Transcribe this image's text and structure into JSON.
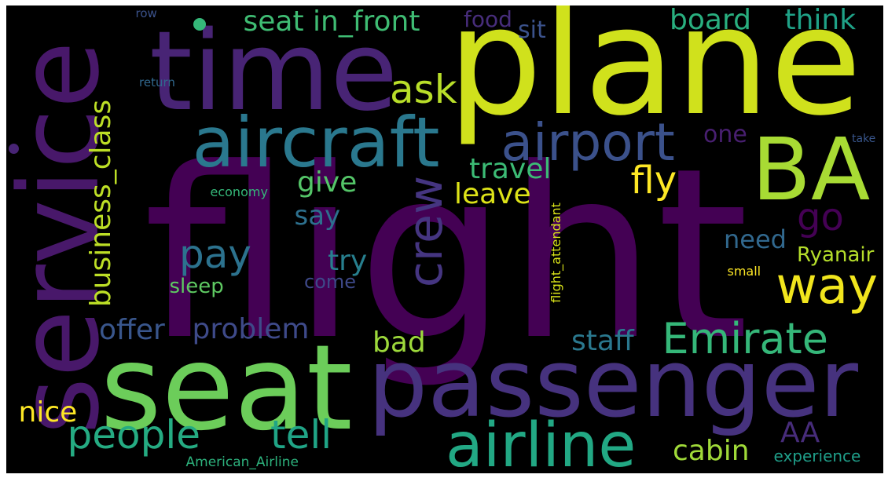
{
  "background": "#000000",
  "words": [
    {
      "text": "flight",
      "color": "#440154",
      "weight": 1.0
    },
    {
      "text": "plane",
      "color": "#d0e11c",
      "weight": 0.62
    },
    {
      "text": "seat",
      "color": "#6ccd5a",
      "weight": 0.48
    },
    {
      "text": "time",
      "color": "#482475",
      "weight": 0.48
    },
    {
      "text": "service",
      "color": "#48186a",
      "weight": 0.46
    },
    {
      "text": "passenger",
      "color": "#46327e",
      "weight": 0.42
    },
    {
      "text": "BA",
      "color": "#a8db34",
      "weight": 0.38
    },
    {
      "text": "aircraft",
      "color": "#2a788e",
      "weight": 0.3
    },
    {
      "text": "airline",
      "color": "#22a884",
      "weight": 0.26
    },
    {
      "text": "airport",
      "color": "#3b518b",
      "weight": 0.22
    },
    {
      "text": "way",
      "color": "#f1e51d",
      "weight": 0.22
    },
    {
      "text": "crew",
      "color": "#453581",
      "weight": 0.2
    },
    {
      "text": "Emirate",
      "color": "#35b779",
      "weight": 0.18
    },
    {
      "text": "people",
      "color": "#25ab82",
      "weight": 0.17
    },
    {
      "text": "tell",
      "color": "#20a486",
      "weight": 0.17
    },
    {
      "text": "pay",
      "color": "#2c728e",
      "weight": 0.17
    },
    {
      "text": "ask",
      "color": "#b8de29",
      "weight": 0.16
    },
    {
      "text": "go",
      "color": "#440154",
      "weight": 0.15
    },
    {
      "text": "fly",
      "color": "#fde725",
      "weight": 0.15
    },
    {
      "text": "business_class",
      "color": "#bddf26",
      "weight": 0.12
    },
    {
      "text": "seat in_front",
      "color": "#3fbc73",
      "weight": 0.12
    },
    {
      "text": "board",
      "color": "#29af7f",
      "weight": 0.11
    },
    {
      "text": "think",
      "color": "#1fa287",
      "weight": 0.11
    },
    {
      "text": "cabin",
      "color": "#a0da39",
      "weight": 0.11
    },
    {
      "text": "staff",
      "color": "#2a788e",
      "weight": 0.11
    },
    {
      "text": "AA",
      "color": "#472c7a",
      "weight": 0.11
    },
    {
      "text": "problem",
      "color": "#3e4a89",
      "weight": 0.11
    },
    {
      "text": "offer",
      "color": "#39568c",
      "weight": 0.1
    },
    {
      "text": "bad",
      "color": "#9dd93b",
      "weight": 0.1
    },
    {
      "text": "nice",
      "color": "#fde725",
      "weight": 0.1
    },
    {
      "text": "leave",
      "color": "#dde318",
      "weight": 0.1
    },
    {
      "text": "give",
      "color": "#54c568",
      "weight": 0.1
    },
    {
      "text": "travel",
      "color": "#3cbb75",
      "weight": 0.1
    },
    {
      "text": "try",
      "color": "#277f8e",
      "weight": 0.1
    },
    {
      "text": "say",
      "color": "#2d708e",
      "weight": 0.09
    },
    {
      "text": "need",
      "color": "#31688e",
      "weight": 0.09
    },
    {
      "text": "one",
      "color": "#481f70",
      "weight": 0.09
    },
    {
      "text": "sit",
      "color": "#3b528b",
      "weight": 0.09
    },
    {
      "text": "food",
      "color": "#472d7b",
      "weight": 0.09
    },
    {
      "text": "Ryanair",
      "color": "#b5de2b",
      "weight": 0.08
    },
    {
      "text": "sleep",
      "color": "#5ec962",
      "weight": 0.08
    },
    {
      "text": "come",
      "color": "#3e4989",
      "weight": 0.08
    },
    {
      "text": "experience",
      "color": "#1f9e89",
      "weight": 0.07
    },
    {
      "text": "American_Airline",
      "color": "#2db27d",
      "weight": 0.06
    },
    {
      "text": "flight_attendant",
      "color": "#d8e219",
      "weight": 0.06
    },
    {
      "text": "economy",
      "color": "#35b779",
      "weight": 0.05
    },
    {
      "text": "small",
      "color": "#fde725",
      "weight": 0.05
    },
    {
      "text": "row",
      "color": "#3b528b",
      "weight": 0.05
    },
    {
      "text": "return",
      "color": "#31688e",
      "weight": 0.05
    },
    {
      "text": "take",
      "color": "#39568c",
      "weight": 0.05
    }
  ]
}
